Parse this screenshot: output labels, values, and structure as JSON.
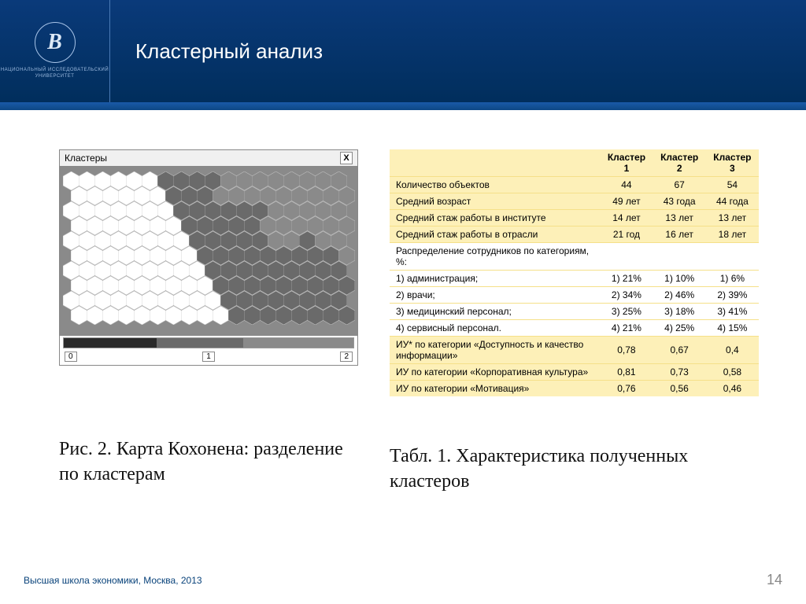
{
  "header": {
    "title": "Кластерный анализ",
    "logo_letter": "В",
    "logo_sub": "НАЦИОНАЛЬНЫЙ ИССЛЕДОВАТЕЛЬСКИЙ УНИВЕРСИТЕТ"
  },
  "som": {
    "panel_title": "Кластеры",
    "close": "X",
    "axis": [
      "0",
      "1",
      "2"
    ],
    "legend_gradient": [
      "#2a2a2a",
      "#6a6a6a",
      "#8a8a8a"
    ],
    "hex_fill_colors": {
      "c0": "#ffffff",
      "c1": "#6a6a6a",
      "c2": "#8a8a8a"
    },
    "hex_stroke": "#bdbdbd",
    "rows": 10,
    "cols": 18,
    "grid": [
      [
        0,
        0,
        0,
        0,
        0,
        0,
        1,
        1,
        1,
        1,
        2,
        2,
        2,
        2,
        2,
        2,
        2,
        2
      ],
      [
        0,
        0,
        0,
        0,
        0,
        0,
        1,
        1,
        1,
        2,
        2,
        2,
        2,
        2,
        2,
        2,
        2,
        2
      ],
      [
        0,
        0,
        0,
        0,
        0,
        0,
        0,
        1,
        1,
        1,
        1,
        1,
        1,
        2,
        2,
        2,
        2,
        2
      ],
      [
        0,
        0,
        0,
        0,
        0,
        0,
        0,
        1,
        1,
        1,
        1,
        1,
        2,
        2,
        2,
        2,
        2,
        2
      ],
      [
        0,
        0,
        0,
        0,
        0,
        0,
        0,
        0,
        1,
        1,
        1,
        1,
        1,
        2,
        2,
        1,
        2,
        2
      ],
      [
        0,
        0,
        0,
        0,
        0,
        0,
        0,
        0,
        1,
        1,
        1,
        1,
        1,
        1,
        1,
        1,
        1,
        2
      ],
      [
        0,
        0,
        0,
        0,
        0,
        0,
        0,
        0,
        0,
        1,
        1,
        1,
        1,
        1,
        1,
        1,
        1,
        1
      ],
      [
        0,
        0,
        0,
        0,
        0,
        0,
        0,
        0,
        0,
        1,
        1,
        1,
        1,
        1,
        1,
        1,
        1,
        1
      ],
      [
        0,
        0,
        0,
        0,
        0,
        0,
        0,
        0,
        0,
        0,
        1,
        1,
        1,
        1,
        1,
        1,
        1,
        1
      ],
      [
        0,
        0,
        0,
        0,
        0,
        0,
        0,
        0,
        0,
        0,
        1,
        1,
        1,
        1,
        1,
        1,
        1,
        1
      ]
    ],
    "caption": "Рис. 2. Карта Кохонена: разделение по кластерам"
  },
  "table": {
    "caption": "Табл. 1. Характеристика полученных кластеров",
    "columns": [
      "",
      "Кластер 1",
      "Кластер 2",
      "Кластер 3"
    ],
    "rows": [
      {
        "w": false,
        "cells": [
          "Количество объектов",
          "44",
          "67",
          "54"
        ]
      },
      {
        "w": false,
        "cells": [
          "Средний возраст",
          "49 лет",
          "43 года",
          "44 года"
        ]
      },
      {
        "w": false,
        "cells": [
          "Средний стаж работы в институте",
          "14 лет",
          "13 лет",
          "13 лет"
        ]
      },
      {
        "w": false,
        "cells": [
          "Средний стаж работы в отрасли",
          "21 год",
          "16 лет",
          "18 лет"
        ]
      },
      {
        "w": true,
        "cells": [
          "Распределение сотрудников по категориям, %:",
          "",
          "",
          ""
        ]
      },
      {
        "w": true,
        "cells": [
          "1) администрация;",
          "1) 21%",
          "1) 10%",
          "1) 6%"
        ]
      },
      {
        "w": true,
        "cells": [
          "2) врачи;",
          "2) 34%",
          "2) 46%",
          "2) 39%"
        ]
      },
      {
        "w": true,
        "cells": [
          "3) медицинский персонал;",
          "3) 25%",
          "3) 18%",
          "3) 41%"
        ]
      },
      {
        "w": true,
        "cells": [
          "4) сервисный персонал.",
          "4) 21%",
          "4) 25%",
          "4) 15%"
        ]
      },
      {
        "w": false,
        "cells": [
          "ИУ* по категории «Доступность и качество информации»",
          "0,78",
          "0,67",
          "0,4"
        ]
      },
      {
        "w": false,
        "cells": [
          "ИУ по категории «Корпоративная культура»",
          "0,81",
          "0,73",
          "0,58"
        ]
      },
      {
        "w": false,
        "cells": [
          "ИУ по категории «Мотивация»",
          "0,76",
          "0,56",
          "0,46"
        ]
      }
    ]
  },
  "footer": {
    "text": "Высшая школа экономики, Москва, 2013",
    "page": "14"
  }
}
